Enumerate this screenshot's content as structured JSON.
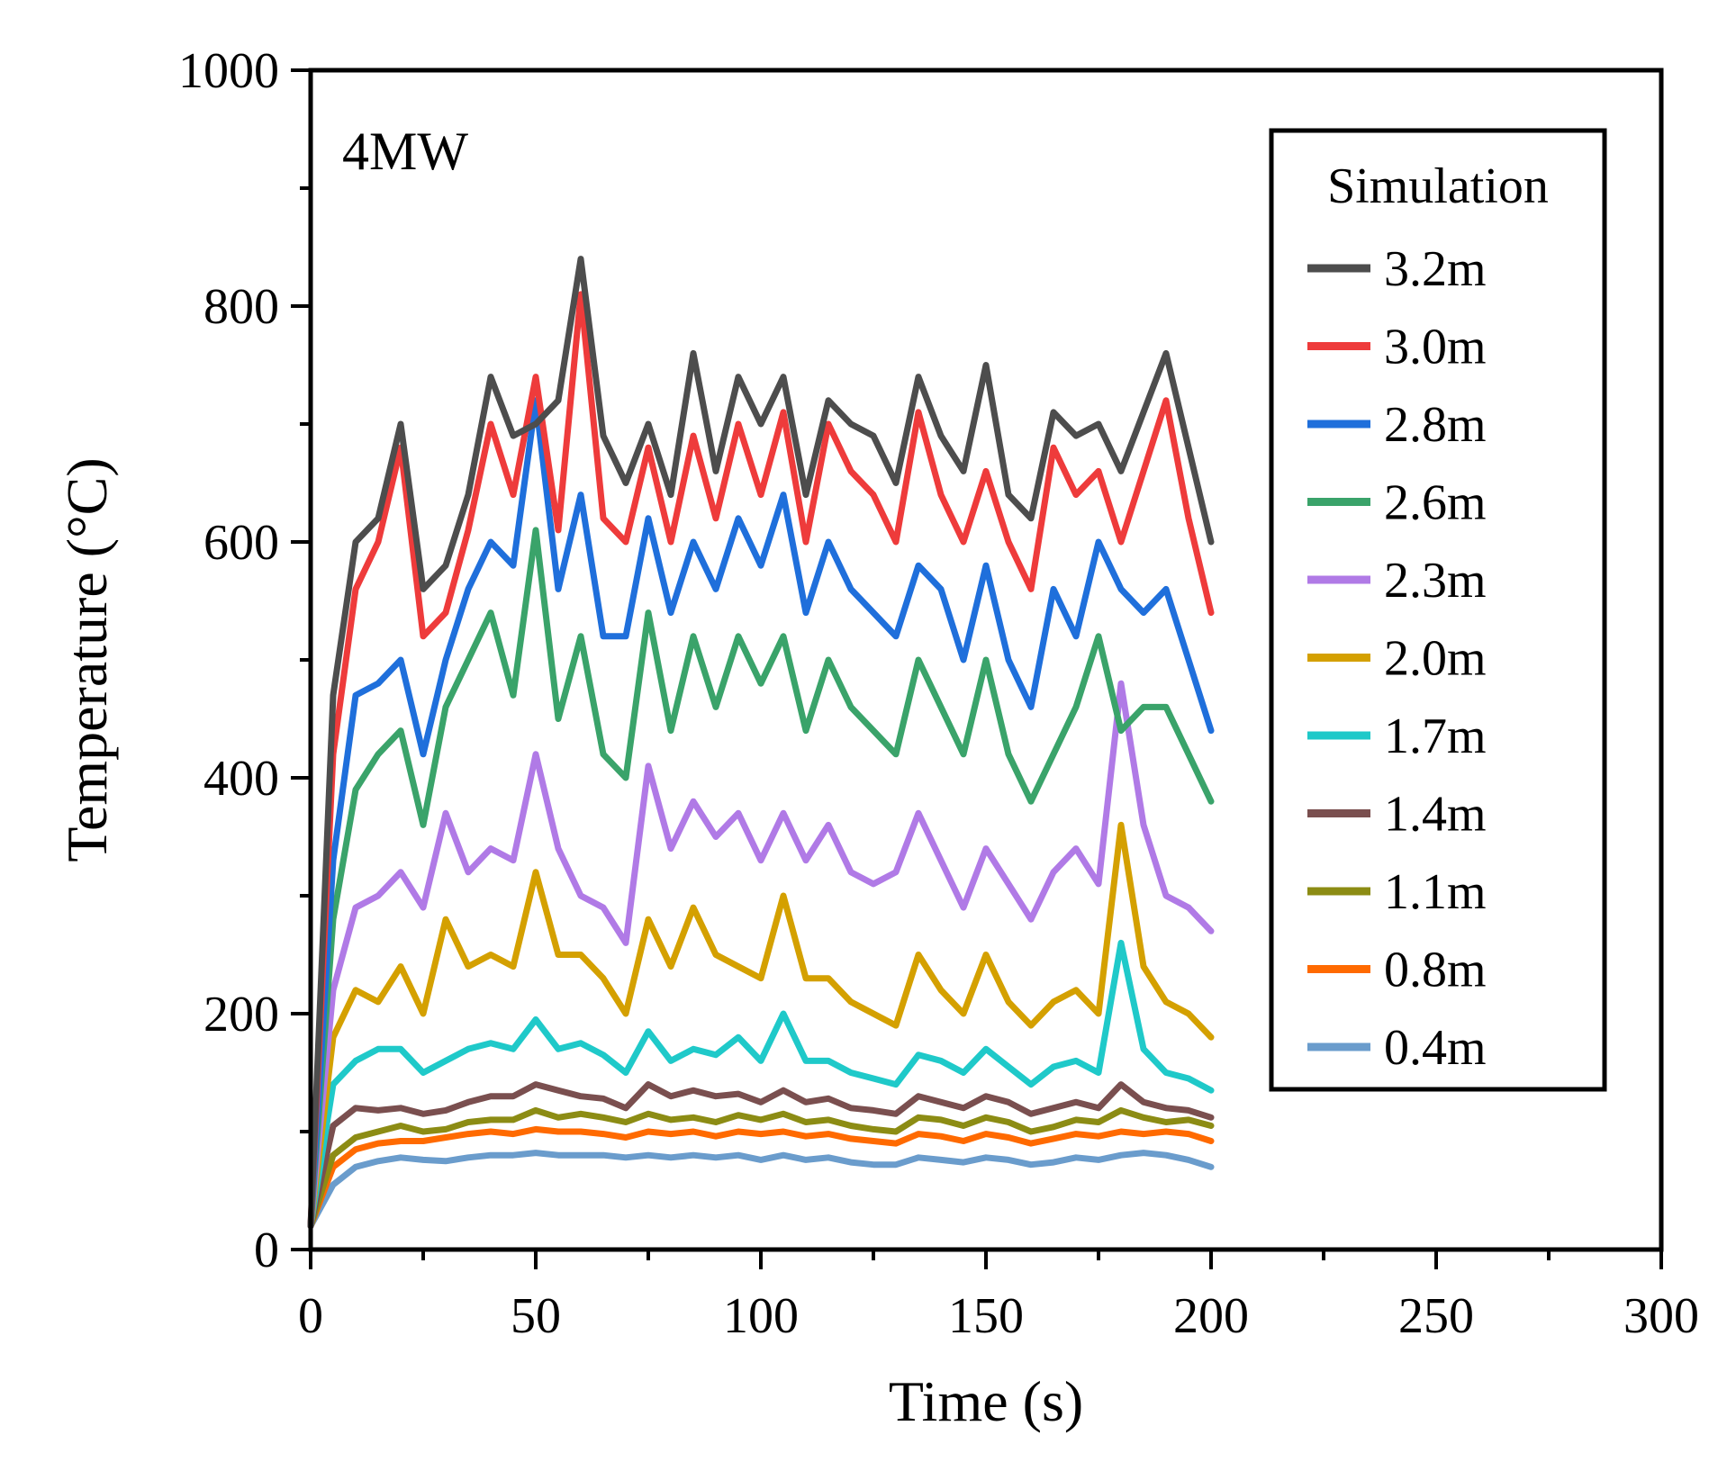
{
  "chart_data": {
    "type": "line",
    "title": "",
    "annotation": "4MW",
    "xlabel": "Time (s)",
    "ylabel": "Temperature (°C)",
    "xlim": [
      0,
      300
    ],
    "ylim": [
      0,
      1000
    ],
    "xticks": [
      0,
      50,
      100,
      150,
      200,
      250,
      300
    ],
    "yticks": [
      0,
      200,
      400,
      600,
      800,
      1000
    ],
    "xtick_labels": [
      "0",
      "50",
      "100",
      "150",
      "200",
      "250",
      "300"
    ],
    "ytick_labels": [
      "0",
      "200",
      "400",
      "600",
      "800",
      "1000"
    ],
    "legend": {
      "title": "Simulation",
      "placement": "top-right"
    },
    "x": [
      0,
      5,
      10,
      15,
      20,
      25,
      30,
      35,
      40,
      45,
      50,
      55,
      60,
      65,
      70,
      75,
      80,
      85,
      90,
      95,
      100,
      105,
      110,
      115,
      120,
      125,
      130,
      135,
      140,
      145,
      150,
      155,
      160,
      165,
      170,
      175,
      180,
      185,
      190,
      195,
      200
    ],
    "series": [
      {
        "name": "3.2m",
        "color": "#4d4d4d",
        "values": [
          20,
          470,
          600,
          620,
          700,
          560,
          580,
          640,
          740,
          690,
          700,
          720,
          840,
          690,
          650,
          700,
          640,
          760,
          660,
          740,
          700,
          740,
          640,
          720,
          700,
          690,
          650,
          740,
          690,
          660,
          750,
          640,
          620,
          710,
          690,
          700,
          660,
          710,
          760,
          680,
          600
        ]
      },
      {
        "name": "3.0m",
        "color": "#ee3b3b",
        "values": [
          20,
          420,
          560,
          600,
          680,
          520,
          540,
          610,
          700,
          640,
          740,
          610,
          810,
          620,
          600,
          680,
          600,
          690,
          620,
          700,
          640,
          710,
          600,
          700,
          660,
          640,
          600,
          710,
          640,
          600,
          660,
          600,
          560,
          680,
          640,
          660,
          600,
          660,
          720,
          620,
          540
        ]
      },
      {
        "name": "2.8m",
        "color": "#1f6fdb",
        "values": [
          20,
          330,
          470,
          480,
          500,
          420,
          500,
          560,
          600,
          580,
          720,
          560,
          640,
          520,
          520,
          620,
          540,
          600,
          560,
          620,
          580,
          640,
          540,
          600,
          560,
          540,
          520,
          580,
          560,
          500,
          580,
          500,
          460,
          560,
          520,
          600,
          560,
          540,
          560,
          500,
          440
        ]
      },
      {
        "name": "2.6m",
        "color": "#3aa36a",
        "values": [
          20,
          280,
          390,
          420,
          440,
          360,
          460,
          500,
          540,
          470,
          610,
          450,
          520,
          420,
          400,
          540,
          440,
          520,
          460,
          520,
          480,
          520,
          440,
          500,
          460,
          440,
          420,
          500,
          460,
          420,
          500,
          420,
          380,
          420,
          460,
          520,
          440,
          460,
          460,
          420,
          380
        ]
      },
      {
        "name": "2.3m",
        "color": "#b07ae6",
        "values": [
          20,
          220,
          290,
          300,
          320,
          290,
          370,
          320,
          340,
          330,
          420,
          340,
          300,
          290,
          260,
          410,
          340,
          380,
          350,
          370,
          330,
          370,
          330,
          360,
          320,
          310,
          320,
          370,
          330,
          290,
          340,
          310,
          280,
          320,
          340,
          310,
          480,
          360,
          300,
          290,
          270
        ]
      },
      {
        "name": "2.0m",
        "color": "#d4a000",
        "values": [
          20,
          180,
          220,
          210,
          240,
          200,
          280,
          240,
          250,
          240,
          320,
          250,
          250,
          230,
          200,
          280,
          240,
          290,
          250,
          240,
          230,
          300,
          230,
          230,
          210,
          200,
          190,
          250,
          220,
          200,
          250,
          210,
          190,
          210,
          220,
          200,
          360,
          240,
          210,
          200,
          180
        ]
      },
      {
        "name": "1.7m",
        "color": "#1fc9c9",
        "values": [
          20,
          140,
          160,
          170,
          170,
          150,
          160,
          170,
          175,
          170,
          195,
          170,
          175,
          165,
          150,
          185,
          160,
          170,
          165,
          180,
          160,
          200,
          160,
          160,
          150,
          145,
          140,
          165,
          160,
          150,
          170,
          155,
          140,
          155,
          160,
          150,
          260,
          170,
          150,
          145,
          135
        ]
      },
      {
        "name": "1.4m",
        "color": "#7a4f4f",
        "values": [
          20,
          105,
          120,
          118,
          120,
          115,
          118,
          125,
          130,
          130,
          140,
          135,
          130,
          128,
          120,
          140,
          130,
          135,
          130,
          132,
          125,
          135,
          125,
          128,
          120,
          118,
          115,
          130,
          125,
          120,
          130,
          125,
          115,
          120,
          125,
          120,
          140,
          125,
          120,
          118,
          112
        ]
      },
      {
        "name": "1.1m",
        "color": "#8c8c14",
        "values": [
          20,
          80,
          95,
          100,
          105,
          100,
          102,
          108,
          110,
          110,
          118,
          112,
          115,
          112,
          108,
          115,
          110,
          112,
          108,
          114,
          110,
          115,
          108,
          110,
          105,
          102,
          100,
          112,
          110,
          105,
          112,
          108,
          100,
          104,
          110,
          108,
          118,
          112,
          108,
          110,
          105
        ]
      },
      {
        "name": "0.8m",
        "color": "#ff6a00",
        "values": [
          20,
          70,
          85,
          90,
          92,
          92,
          95,
          98,
          100,
          98,
          102,
          100,
          100,
          98,
          95,
          100,
          98,
          100,
          96,
          100,
          98,
          100,
          96,
          98,
          94,
          92,
          90,
          98,
          96,
          92,
          98,
          95,
          90,
          94,
          98,
          96,
          100,
          98,
          100,
          98,
          92
        ]
      },
      {
        "name": "0.4m",
        "color": "#6a9ccc",
        "values": [
          20,
          55,
          70,
          75,
          78,
          76,
          75,
          78,
          80,
          80,
          82,
          80,
          80,
          80,
          78,
          80,
          78,
          80,
          78,
          80,
          76,
          80,
          76,
          78,
          74,
          72,
          72,
          78,
          76,
          74,
          78,
          76,
          72,
          74,
          78,
          76,
          80,
          82,
          80,
          76,
          70
        ]
      }
    ]
  }
}
